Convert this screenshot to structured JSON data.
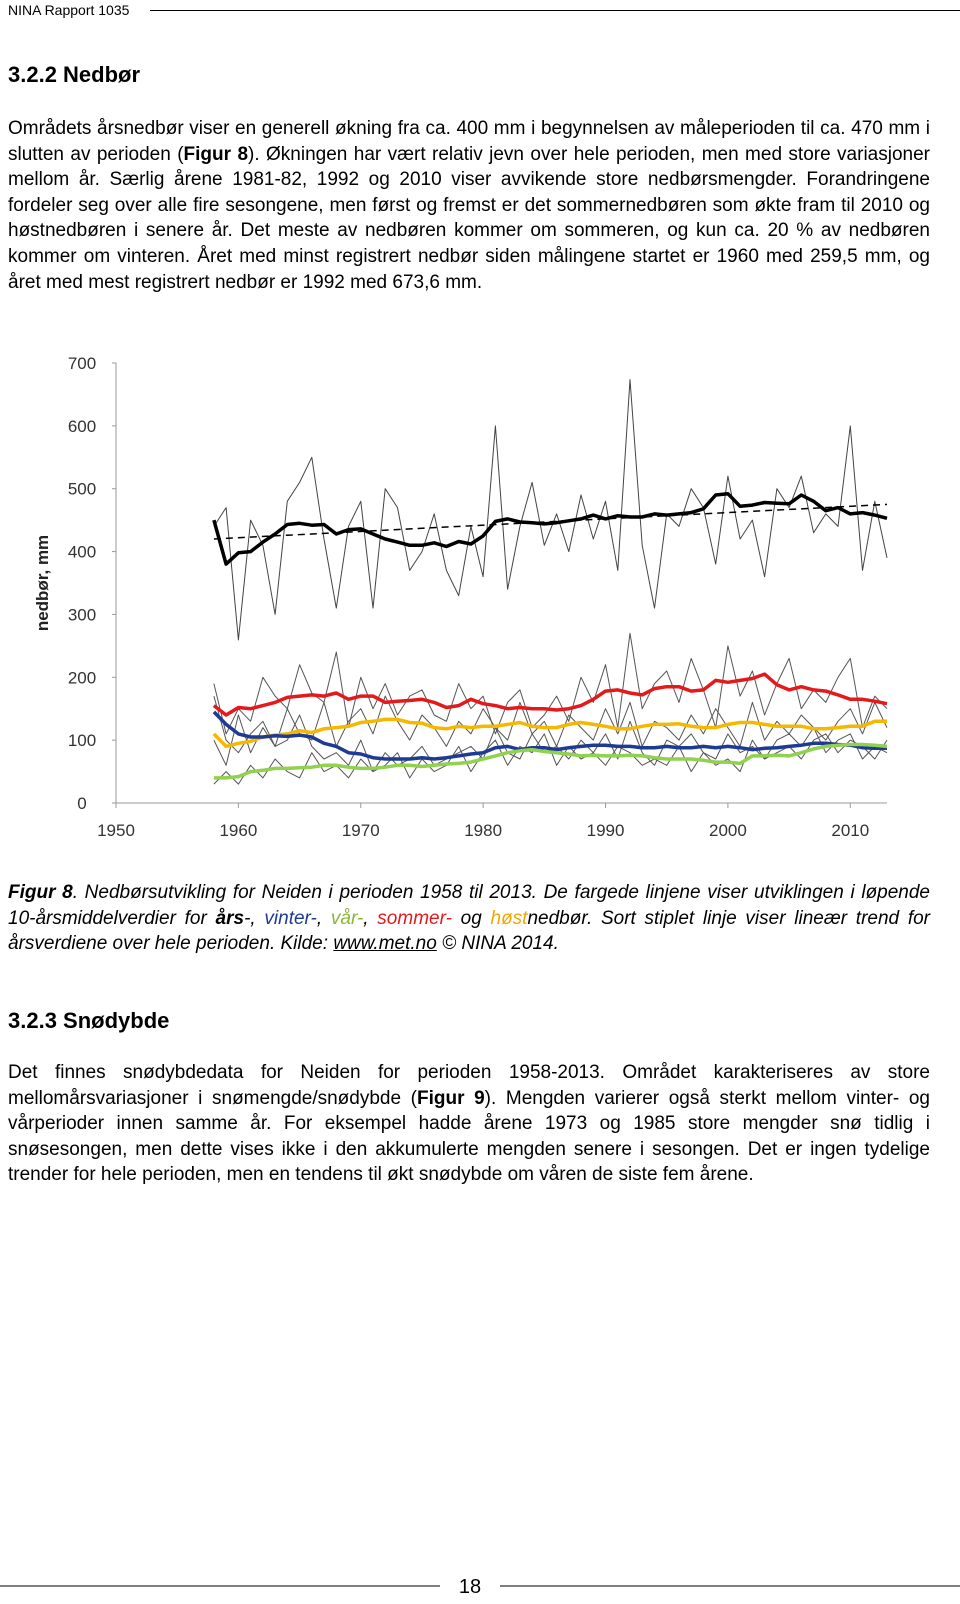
{
  "header": {
    "title": "NINA Rapport 1035"
  },
  "section1": {
    "heading": "3.2.2 Nedbør",
    "paragraph": [
      "Områdets årsnedbør viser en generell økning fra ca. 400 mm i begynnelsen av måleperioden til ca. 470 mm i slutten av perioden (",
      "Figur 8",
      "). Økningen har vært relativ jevn over hele perioden, men med store variasjoner mellom år. Særlig årene 1981-82, 1992 og 2010 viser avvikende store nedbørsmengder. Forandringene fordeler seg over alle fire sesongene, men først og fremst er det sommernedbøren som økte fram til 2010 og høstnedbøren i senere år. Det meste av nedbøren kommer om sommeren, og kun ca. 20 % av nedbøren kommer om vinteren. Året med minst registrert nedbør siden målingene startet er 1960 med 259,5 mm, og året med mest registrert nedbør er 1992 med 673,6 mm."
    ]
  },
  "chart_data": {
    "type": "line",
    "y_label": "nedbør, mm",
    "grid": false,
    "xlim": [
      1950,
      2013
    ],
    "xticks": [
      1950,
      1960,
      1970,
      1980,
      1990,
      2000,
      2010
    ],
    "ylim": [
      0,
      700
    ],
    "yticks": [
      0,
      100,
      200,
      300,
      400,
      500,
      600,
      700
    ],
    "x": [
      1958,
      1959,
      1960,
      1961,
      1962,
      1963,
      1964,
      1965,
      1966,
      1967,
      1968,
      1969,
      1970,
      1971,
      1972,
      1973,
      1974,
      1975,
      1976,
      1977,
      1978,
      1979,
      1980,
      1981,
      1982,
      1983,
      1984,
      1985,
      1986,
      1987,
      1988,
      1989,
      1990,
      1991,
      1992,
      1993,
      1994,
      1995,
      1996,
      1997,
      1998,
      1999,
      2000,
      2001,
      2002,
      2003,
      2004,
      2005,
      2006,
      2007,
      2008,
      2009,
      2010,
      2011,
      2012,
      2013
    ],
    "series": [
      {
        "color": "#555555",
        "width": 1,
        "values": [
          190,
          110,
          150,
          130,
          200,
          170,
          150,
          220,
          175,
          160,
          240,
          120,
          200,
          150,
          190,
          140,
          170,
          180,
          140,
          130,
          190,
          150,
          170,
          110,
          160,
          180,
          120,
          140,
          170,
          130,
          200,
          160,
          220,
          120,
          270,
          150,
          190,
          210,
          160,
          230,
          180,
          120,
          250,
          170,
          210,
          140,
          190,
          230,
          150,
          180,
          160,
          200,
          230,
          120,
          170,
          150
        ]
      },
      {
        "color": "#555555",
        "width": 1,
        "values": [
          100,
          60,
          140,
          80,
          120,
          90,
          150,
          110,
          100,
          160,
          90,
          130,
          150,
          110,
          170,
          130,
          100,
          140,
          120,
          90,
          130,
          110,
          150,
          120,
          100,
          160,
          110,
          130,
          90,
          140,
          120,
          100,
          150,
          110,
          160,
          90,
          130,
          120,
          100,
          140,
          110,
          150,
          120,
          90,
          160,
          100,
          130,
          110,
          140,
          120,
          100,
          130,
          150,
          110,
          160,
          120
        ]
      },
      {
        "color": "#555555",
        "width": 1,
        "values": [
          170,
          100,
          80,
          110,
          130,
          90,
          100,
          140,
          90,
          70,
          80,
          60,
          100,
          50,
          80,
          60,
          70,
          90,
          60,
          70,
          80,
          90,
          70,
          120,
          80,
          70,
          110,
          80,
          90,
          70,
          100,
          80,
          110,
          70,
          130,
          80,
          60,
          100,
          90,
          110,
          80,
          70,
          110,
          80,
          90,
          70,
          100,
          110,
          90,
          120,
          80,
          100,
          110,
          70,
          90,
          80
        ]
      },
      {
        "color": "#555555",
        "width": 1,
        "values": [
          30,
          50,
          30,
          60,
          40,
          70,
          50,
          40,
          80,
          50,
          60,
          40,
          70,
          50,
          60,
          80,
          40,
          70,
          50,
          60,
          90,
          50,
          80,
          100,
          60,
          90,
          80,
          110,
          60,
          90,
          70,
          80,
          60,
          90,
          80,
          60,
          70,
          60,
          90,
          50,
          80,
          60,
          70,
          50,
          100,
          70,
          80,
          90,
          70,
          100,
          110,
          80,
          100,
          90,
          70,
          100
        ]
      },
      {
        "color": "#444444",
        "width": 1,
        "values": [
          440,
          470,
          259.5,
          450,
          410,
          300,
          480,
          510,
          550,
          420,
          310,
          440,
          480,
          310,
          500,
          470,
          370,
          400,
          460,
          370,
          330,
          440,
          360,
          600,
          340,
          440,
          510,
          410,
          460,
          400,
          490,
          420,
          480,
          370,
          673.6,
          410,
          310,
          460,
          440,
          500,
          470,
          380,
          520,
          420,
          450,
          360,
          500,
          470,
          520,
          430,
          460,
          440,
          600,
          370,
          480,
          390
        ]
      },
      {
        "color": "#e31a1c",
        "width": 3.5,
        "values": [
          155,
          140,
          152,
          150,
          155,
          160,
          168,
          170,
          172,
          170,
          175,
          165,
          170,
          170,
          160,
          162,
          163,
          165,
          160,
          152,
          155,
          165,
          158,
          155,
          150,
          152,
          150,
          150,
          148,
          150,
          155,
          165,
          178,
          180,
          175,
          172,
          182,
          185,
          185,
          178,
          180,
          195,
          192,
          195,
          198,
          205,
          188,
          180,
          185,
          180,
          178,
          172,
          165,
          165,
          162,
          158
        ]
      },
      {
        "color": "#f5b800",
        "width": 3.5,
        "values": [
          110,
          90,
          95,
          98,
          105,
          108,
          110,
          115,
          112,
          118,
          120,
          122,
          128,
          130,
          133,
          133,
          128,
          127,
          120,
          118,
          122,
          120,
          122,
          122,
          125,
          128,
          122,
          120,
          120,
          125,
          128,
          125,
          122,
          118,
          118,
          122,
          125,
          125,
          126,
          122,
          120,
          120,
          125,
          128,
          128,
          125,
          122,
          122,
          122,
          118,
          118,
          120,
          122,
          122,
          130,
          130
        ]
      },
      {
        "color": "#1f3a93",
        "width": 3.5,
        "values": [
          145,
          125,
          110,
          105,
          105,
          107,
          106,
          108,
          105,
          95,
          90,
          80,
          78,
          72,
          70,
          70,
          70,
          72,
          70,
          72,
          75,
          78,
          80,
          88,
          90,
          85,
          88,
          88,
          85,
          88,
          90,
          92,
          92,
          90,
          90,
          88,
          88,
          90,
          88,
          88,
          90,
          88,
          90,
          88,
          85,
          87,
          88,
          90,
          92,
          95,
          95,
          93,
          92,
          88,
          87,
          87
        ]
      },
      {
        "color": "#92d050",
        "width": 3.5,
        "values": [
          40,
          40,
          42,
          50,
          52,
          55,
          55,
          56,
          57,
          60,
          60,
          57,
          55,
          55,
          57,
          60,
          60,
          58,
          60,
          62,
          63,
          65,
          70,
          75,
          80,
          83,
          85,
          82,
          80,
          78,
          75,
          76,
          75,
          75,
          76,
          75,
          72,
          70,
          70,
          70,
          68,
          65,
          65,
          63,
          75,
          75,
          76,
          75,
          80,
          86,
          90,
          92,
          93,
          93,
          92,
          90
        ]
      },
      {
        "color": "#000000",
        "width": 3.5,
        "values": [
          450,
          380,
          398,
          400,
          415,
          428,
          443,
          445,
          442,
          443,
          428,
          435,
          436,
          428,
          420,
          415,
          410,
          410,
          414,
          408,
          416,
          412,
          425,
          448,
          452,
          447,
          446,
          444,
          446,
          449,
          452,
          458,
          452,
          457,
          455,
          455,
          460,
          458,
          460,
          462,
          468,
          490,
          492,
          472,
          474,
          478,
          477,
          476,
          490,
          480,
          465,
          470,
          460,
          462,
          458,
          453
        ]
      },
      {
        "color": "#000000",
        "width": 1.5,
        "dashed": true,
        "x": [
          1958,
          2013
        ],
        "values": [
          420,
          475
        ]
      }
    ]
  },
  "caption": [
    "Figur 8",
    ". Nedbørsutvikling for Neiden i perioden 1958 til 2013. De fargede linjene viser utviklingen i løpende 10-årsmiddelverdier for ",
    "års",
    "-, ",
    "vinter-",
    ", ",
    "vår-",
    ", ",
    "sommer-",
    " og ",
    "høst",
    "nedbør. Sort stiplet linje viser lineær trend for årsverdiene over hele perioden. Kilde: ",
    "www.met.no",
    " © NINA 2014."
  ],
  "section2": {
    "heading": "3.2.3 Snødybde",
    "paragraph": [
      "Det finnes snødybdedata for Neiden for perioden 1958-2013. Området karakteriseres av store mellomårsvariasjoner i snømengde/snødybde (",
      "Figur 9",
      "). Mengden varierer også sterkt mellom vinter- og vårperioder innen samme år. For eksempel hadde årene 1973 og 1985 store mengder snø tidlig i snøsesongen, men dette vises ikke i den akkumulerte mengden senere i sesongen. Det er ingen tydelige trender for hele perioden, men en tendens til økt snødybde om våren de siste fem årene."
    ]
  },
  "footer": {
    "page": "18"
  }
}
